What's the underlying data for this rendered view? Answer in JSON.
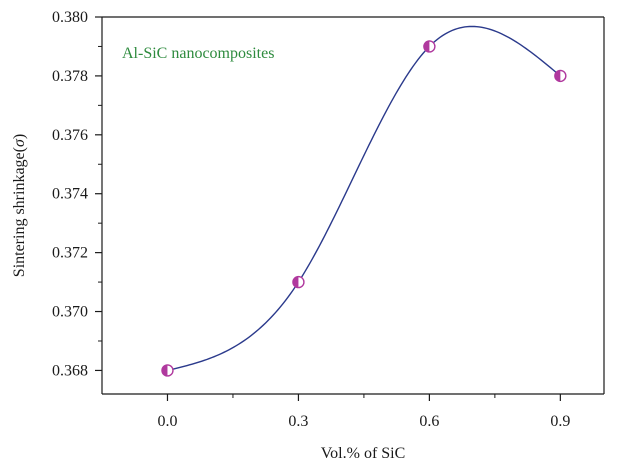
{
  "chart_data": {
    "type": "scatter",
    "xlabel": "Vol.% of SiC",
    "ylabel_main": "Sintering shrinkage(",
    "ylabel_symbol": "σ",
    "ylabel_end": ")",
    "annotation": "Al-SiC nanocomposites",
    "annotation_color": "#2e8b3e",
    "line_color": "#2b3a8c",
    "marker_color": "#b0399e",
    "xlim": [
      -0.15,
      1.0
    ],
    "ylim": [
      0.3672,
      0.38
    ],
    "x_ticks": [
      "0.0",
      "0.3",
      "0.6",
      "0.9"
    ],
    "x_tick_values": [
      0.0,
      0.3,
      0.6,
      0.9
    ],
    "y_ticks": [
      "0.368",
      "0.370",
      "0.372",
      "0.374",
      "0.376",
      "0.378",
      "0.380"
    ],
    "y_tick_values": [
      0.368,
      0.37,
      0.372,
      0.374,
      0.376,
      0.378,
      0.38
    ],
    "x": [
      0.0,
      0.3,
      0.6,
      0.9
    ],
    "y": [
      0.368,
      0.371,
      0.379,
      0.378
    ],
    "fit_curve": true,
    "grid": false
  }
}
